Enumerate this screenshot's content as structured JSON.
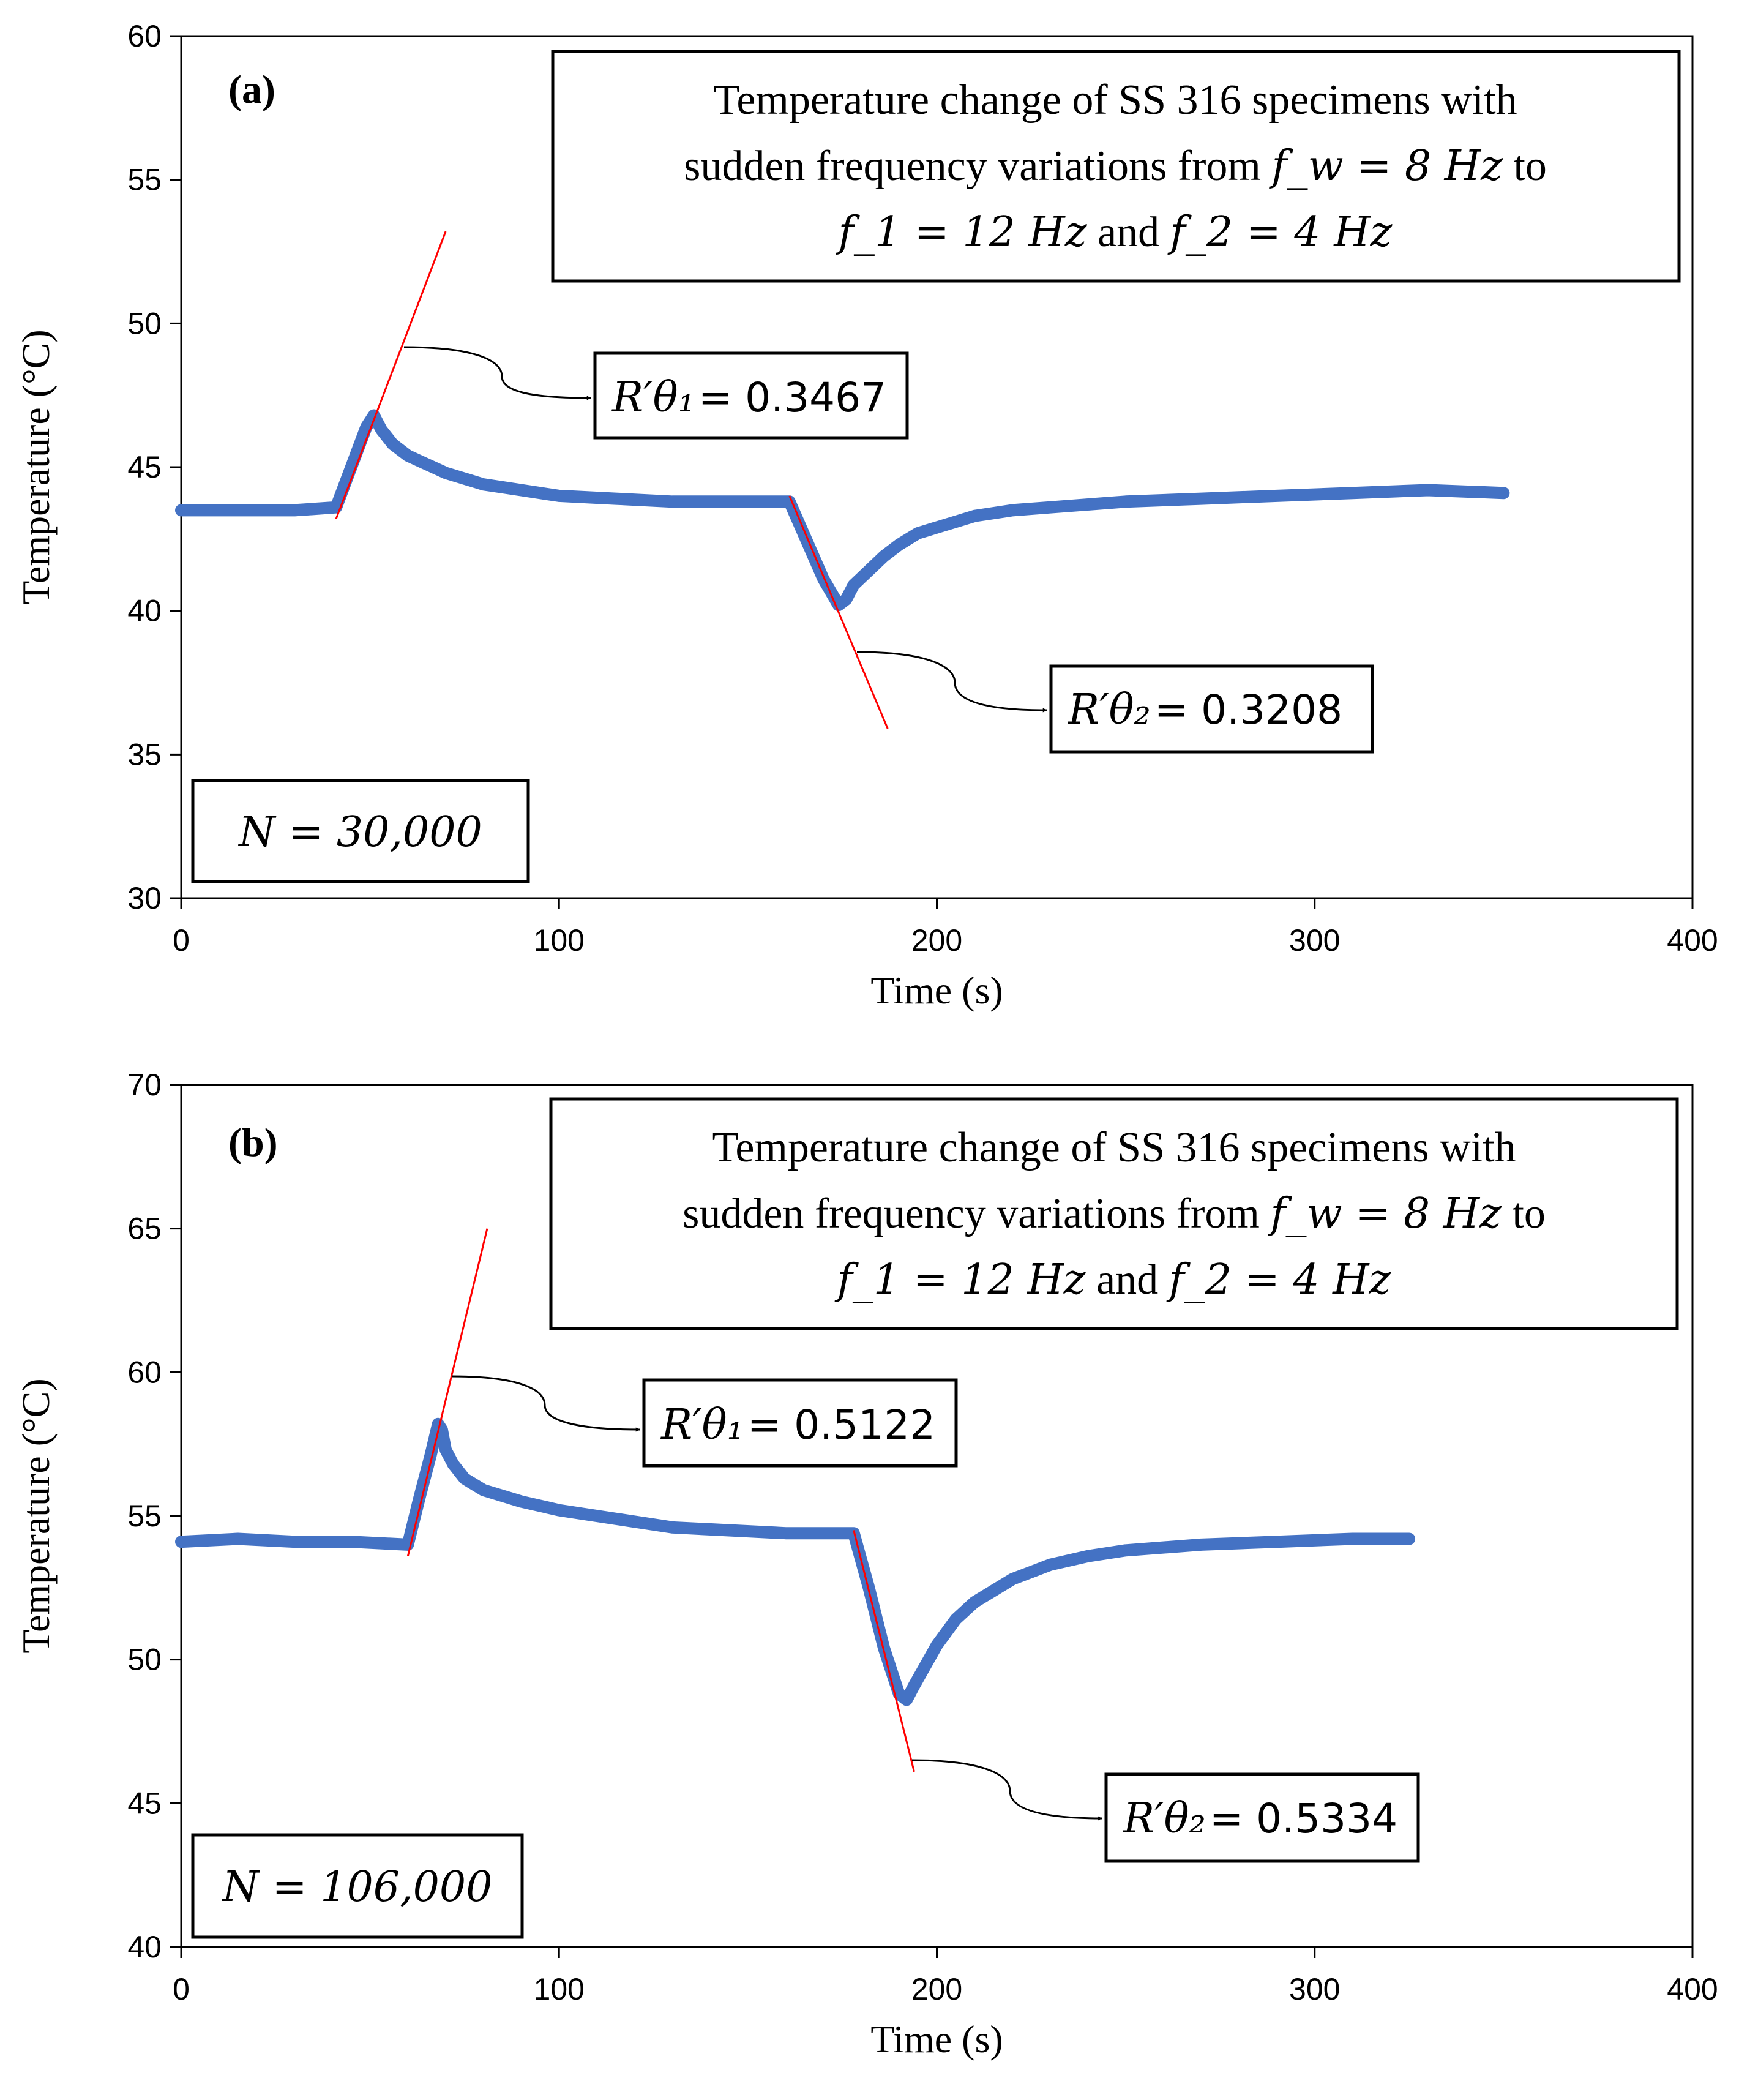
{
  "chart_data": [
    {
      "panel": "(a)",
      "type": "line",
      "xlabel": "Time (s)",
      "ylabel": "Temperature (°C)",
      "xlim": [
        0,
        400
      ],
      "ylim": [
        30,
        60
      ],
      "xticks": [
        0,
        100,
        200,
        300,
        400
      ],
      "yticks": [
        30,
        35,
        40,
        45,
        50,
        55,
        60
      ],
      "grid": false,
      "legend": "none",
      "series": [
        {
          "name": "Temperature",
          "color": "#4472c4",
          "x": [
            0,
            10,
            20,
            30,
            41,
            45,
            49,
            51,
            53,
            56,
            60,
            65,
            70,
            80,
            90,
            100,
            115,
            130,
            145,
            161,
            165,
            170,
            174,
            176,
            178,
            182,
            186,
            190,
            195,
            200,
            210,
            220,
            230,
            250,
            270,
            290,
            310,
            330,
            350
          ],
          "y": [
            43.5,
            43.5,
            43.5,
            43.5,
            43.6,
            45.0,
            46.4,
            46.8,
            46.3,
            45.8,
            45.4,
            45.1,
            44.8,
            44.4,
            44.2,
            44.0,
            43.9,
            43.8,
            43.8,
            43.8,
            42.6,
            41.1,
            40.2,
            40.4,
            40.9,
            41.4,
            41.9,
            42.3,
            42.7,
            42.9,
            43.3,
            43.5,
            43.6,
            43.8,
            43.9,
            44.0,
            44.1,
            44.2,
            44.1
          ]
        }
      ],
      "slope_lines": [
        {
          "x": [
            41,
            70
          ],
          "y": [
            43.2,
            53.2
          ]
        },
        {
          "x": [
            161,
            187
          ],
          "y": [
            44.0,
            35.9
          ]
        }
      ],
      "title_box": {
        "line1": "Temperature change of SS 316 specimens with",
        "line2_prefix": "sudden frequency variations from ",
        "line2_math": "f_w = 8 Hz",
        "line2_suffix": " to",
        "line3_math1": "f_1 = 12 Hz",
        "line3_mid": " and ",
        "line3_math2": "f_2 = 4 Hz"
      },
      "annotations": [
        {
          "symbol": "R′θ₁",
          "value": "= 0.3467"
        },
        {
          "symbol": "R′θ₂",
          "value": "= 0.3208"
        }
      ],
      "cycles_label": "N = 30,000"
    },
    {
      "panel": "(b)",
      "type": "line",
      "xlabel": "Time (s)",
      "ylabel": "Temperature (°C)",
      "xlim": [
        0,
        400
      ],
      "ylim": [
        40,
        70
      ],
      "xticks": [
        0,
        100,
        200,
        300,
        400
      ],
      "yticks": [
        40,
        45,
        50,
        55,
        60,
        65,
        70
      ],
      "grid": false,
      "legend": "none",
      "series": [
        {
          "name": "Temperature",
          "color": "#4472c4",
          "x": [
            0,
            15,
            30,
            45,
            60,
            63,
            66,
            68,
            69,
            70,
            72,
            75,
            80,
            90,
            100,
            115,
            130,
            145,
            160,
            178,
            182,
            186,
            190,
            192,
            194,
            197,
            200,
            205,
            210,
            220,
            230,
            240,
            250,
            270,
            290,
            310,
            325
          ],
          "y": [
            54.1,
            54.2,
            54.1,
            54.1,
            54.0,
            55.6,
            57.1,
            58.2,
            58.0,
            57.3,
            56.8,
            56.3,
            55.9,
            55.5,
            55.2,
            54.9,
            54.6,
            54.5,
            54.4,
            54.4,
            52.5,
            50.4,
            48.8,
            48.6,
            49.1,
            49.8,
            50.5,
            51.4,
            52.0,
            52.8,
            53.3,
            53.6,
            53.8,
            54.0,
            54.1,
            54.2,
            54.2
          ]
        }
      ],
      "slope_lines": [
        {
          "x": [
            60,
            81
          ],
          "y": [
            53.6,
            65.0
          ]
        },
        {
          "x": [
            178,
            194
          ],
          "y": [
            54.5,
            46.1
          ]
        }
      ],
      "title_box": {
        "line1": "Temperature change of SS 316 specimens with",
        "line2_prefix": "sudden frequency variations from ",
        "line2_math": "f_w = 8 Hz",
        "line2_suffix": " to",
        "line3_math1": "f_1 = 12 Hz",
        "line3_mid": " and ",
        "line3_math2": "f_2 = 4 Hz"
      },
      "annotations": [
        {
          "symbol": "R′θ₁",
          "value": "= 0.5122"
        },
        {
          "symbol": "R′θ₂",
          "value": "= 0.5334"
        }
      ],
      "cycles_label": "N = 106,000"
    }
  ]
}
